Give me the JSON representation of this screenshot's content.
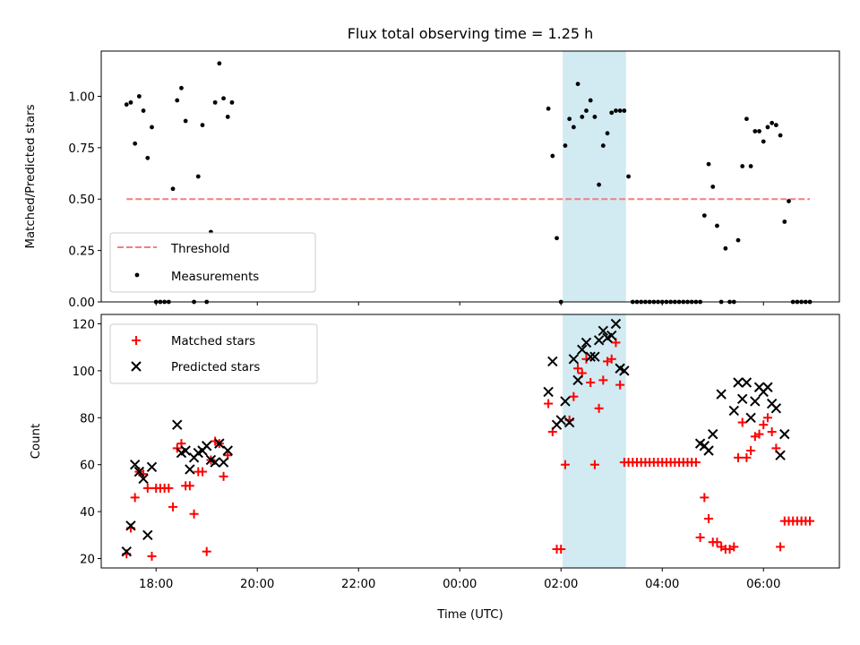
{
  "chart_data": [
    {
      "type": "scatter",
      "title": "Flux total observing time = 1.25 h",
      "ylabel": "Matched/Predicted stars",
      "xlabel": "",
      "ylim": [
        0,
        1.22
      ],
      "yticks": [
        "0.00",
        "0.25",
        "0.50",
        "0.75",
        "1.00"
      ],
      "highlight_span": [
        "02:02",
        "03:17"
      ],
      "highlight_color": "#add8e6",
      "threshold": {
        "name": "Threshold",
        "value": 0.5,
        "x_range": [
          "17:25",
          "06:55"
        ],
        "color": "#f08080"
      },
      "series": [
        {
          "name": "Measurements",
          "color": "#000000",
          "marker": "dot",
          "points": [
            [
              "17:25",
              0.96
            ],
            [
              "17:30",
              0.97
            ],
            [
              "17:35",
              0.77
            ],
            [
              "17:40",
              1.0
            ],
            [
              "17:45",
              0.93
            ],
            [
              "17:50",
              0.7
            ],
            [
              "17:55",
              0.85
            ],
            [
              "18:00",
              0.0
            ],
            [
              "18:05",
              0.0
            ],
            [
              "18:10",
              0.0
            ],
            [
              "18:15",
              0.0
            ],
            [
              "18:20",
              0.55
            ],
            [
              "18:25",
              0.98
            ],
            [
              "18:30",
              1.04
            ],
            [
              "18:35",
              0.88
            ],
            [
              "18:45",
              0.0
            ],
            [
              "18:50",
              0.61
            ],
            [
              "18:55",
              0.86
            ],
            [
              "19:00",
              0.0
            ],
            [
              "19:05",
              0.34
            ],
            [
              "19:10",
              0.97
            ],
            [
              "19:15",
              1.16
            ],
            [
              "19:20",
              0.99
            ],
            [
              "19:25",
              0.9
            ],
            [
              "19:30",
              0.97
            ],
            [
              "01:45",
              0.94
            ],
            [
              "01:50",
              0.71
            ],
            [
              "01:55",
              0.31
            ],
            [
              "02:00",
              0.0
            ],
            [
              "02:05",
              0.76
            ],
            [
              "02:10",
              0.89
            ],
            [
              "02:15",
              0.85
            ],
            [
              "02:20",
              1.06
            ],
            [
              "02:25",
              0.9
            ],
            [
              "02:30",
              0.93
            ],
            [
              "02:35",
              0.98
            ],
            [
              "02:40",
              0.9
            ],
            [
              "02:45",
              0.57
            ],
            [
              "02:50",
              0.76
            ],
            [
              "02:55",
              0.82
            ],
            [
              "03:00",
              0.92
            ],
            [
              "03:05",
              0.93
            ],
            [
              "03:10",
              0.93
            ],
            [
              "03:15",
              0.93
            ],
            [
              "03:20",
              0.61
            ],
            [
              "03:25",
              0.0
            ],
            [
              "03:30",
              0.0
            ],
            [
              "03:35",
              0.0
            ],
            [
              "03:40",
              0.0
            ],
            [
              "03:45",
              0.0
            ],
            [
              "03:50",
              0.0
            ],
            [
              "03:55",
              0.0
            ],
            [
              "04:00",
              0.0
            ],
            [
              "04:05",
              0.0
            ],
            [
              "04:10",
              0.0
            ],
            [
              "04:15",
              0.0
            ],
            [
              "04:20",
              0.0
            ],
            [
              "04:25",
              0.0
            ],
            [
              "04:30",
              0.0
            ],
            [
              "04:35",
              0.0
            ],
            [
              "04:40",
              0.0
            ],
            [
              "04:45",
              0.0
            ],
            [
              "04:50",
              0.42
            ],
            [
              "04:55",
              0.67
            ],
            [
              "05:00",
              0.56
            ],
            [
              "05:05",
              0.37
            ],
            [
              "05:10",
              0.0
            ],
            [
              "05:15",
              0.26
            ],
            [
              "05:20",
              0.0
            ],
            [
              "05:25",
              0.0
            ],
            [
              "05:30",
              0.3
            ],
            [
              "05:35",
              0.66
            ],
            [
              "05:40",
              0.89
            ],
            [
              "05:45",
              0.66
            ],
            [
              "05:50",
              0.83
            ],
            [
              "05:55",
              0.83
            ],
            [
              "06:00",
              0.78
            ],
            [
              "06:05",
              0.85
            ],
            [
              "06:10",
              0.87
            ],
            [
              "06:15",
              0.86
            ],
            [
              "06:20",
              0.81
            ],
            [
              "06:25",
              0.39
            ],
            [
              "06:30",
              0.49
            ],
            [
              "06:35",
              0.0
            ],
            [
              "06:40",
              0.0
            ],
            [
              "06:45",
              0.0
            ],
            [
              "06:50",
              0.0
            ],
            [
              "06:55",
              0.0
            ]
          ]
        }
      ]
    },
    {
      "type": "scatter",
      "title": "",
      "ylabel": "Count",
      "xlabel": "Time (UTC)",
      "ylim": [
        16,
        124
      ],
      "yticks": [
        "20",
        "40",
        "60",
        "80",
        "100",
        "120"
      ],
      "xlim": [
        "16:55",
        "07:30"
      ],
      "xticks": [
        "18:00",
        "20:00",
        "22:00",
        "00:00",
        "02:00",
        "04:00",
        "06:00"
      ],
      "highlight_span": [
        "02:02",
        "03:17"
      ],
      "highlight_color": "#add8e6",
      "series": [
        {
          "name": "Matched stars",
          "color": "#ff0000",
          "marker": "plus",
          "points": [
            [
              "17:25",
              22
            ],
            [
              "17:30",
              33
            ],
            [
              "17:35",
              46
            ],
            [
              "17:40",
              57
            ],
            [
              "17:45",
              56
            ],
            [
              "17:50",
              50
            ],
            [
              "17:55",
              21
            ],
            [
              "18:00",
              50
            ],
            [
              "18:05",
              50
            ],
            [
              "18:10",
              50
            ],
            [
              "18:15",
              50
            ],
            [
              "18:20",
              42
            ],
            [
              "18:25",
              67
            ],
            [
              "18:30",
              69
            ],
            [
              "18:35",
              51
            ],
            [
              "18:40",
              51
            ],
            [
              "18:45",
              39
            ],
            [
              "18:50",
              57
            ],
            [
              "18:55",
              57
            ],
            [
              "19:00",
              23
            ],
            [
              "19:05",
              62
            ],
            [
              "19:10",
              70
            ],
            [
              "19:15",
              69
            ],
            [
              "19:20",
              55
            ],
            [
              "19:25",
              64
            ],
            [
              "01:45",
              86
            ],
            [
              "01:50",
              74
            ],
            [
              "01:55",
              24
            ],
            [
              "02:00",
              24
            ],
            [
              "02:05",
              60
            ],
            [
              "02:10",
              79
            ],
            [
              "02:15",
              89
            ],
            [
              "02:20",
              101
            ],
            [
              "02:25",
              99
            ],
            [
              "02:30",
              105
            ],
            [
              "02:35",
              95
            ],
            [
              "02:40",
              60
            ],
            [
              "02:45",
              84
            ],
            [
              "02:50",
              96
            ],
            [
              "02:55",
              104
            ],
            [
              "03:00",
              105
            ],
            [
              "03:05",
              112
            ],
            [
              "03:10",
              94
            ],
            [
              "03:15",
              61
            ],
            [
              "03:20",
              61
            ],
            [
              "03:25",
              61
            ],
            [
              "03:30",
              61
            ],
            [
              "03:35",
              61
            ],
            [
              "03:40",
              61
            ],
            [
              "03:45",
              61
            ],
            [
              "03:50",
              61
            ],
            [
              "03:55",
              61
            ],
            [
              "04:00",
              61
            ],
            [
              "04:05",
              61
            ],
            [
              "04:10",
              61
            ],
            [
              "04:15",
              61
            ],
            [
              "04:20",
              61
            ],
            [
              "04:25",
              61
            ],
            [
              "04:30",
              61
            ],
            [
              "04:35",
              61
            ],
            [
              "04:40",
              61
            ],
            [
              "04:45",
              29
            ],
            [
              "04:50",
              46
            ],
            [
              "04:55",
              37
            ],
            [
              "05:00",
              27
            ],
            [
              "05:05",
              27
            ],
            [
              "05:10",
              25
            ],
            [
              "05:15",
              24
            ],
            [
              "05:20",
              24
            ],
            [
              "05:25",
              25
            ],
            [
              "05:30",
              63
            ],
            [
              "05:35",
              78
            ],
            [
              "05:40",
              63
            ],
            [
              "05:45",
              66
            ],
            [
              "05:50",
              72
            ],
            [
              "05:55",
              73
            ],
            [
              "06:00",
              77
            ],
            [
              "06:05",
              80
            ],
            [
              "06:10",
              74
            ],
            [
              "06:15",
              67
            ],
            [
              "06:20",
              25
            ],
            [
              "06:25",
              36
            ],
            [
              "06:30",
              36
            ],
            [
              "06:35",
              36
            ],
            [
              "06:40",
              36
            ],
            [
              "06:45",
              36
            ],
            [
              "06:50",
              36
            ],
            [
              "06:55",
              36
            ]
          ]
        },
        {
          "name": "Predicted stars",
          "color": "#000000",
          "marker": "x",
          "points": [
            [
              "17:25",
              23
            ],
            [
              "17:30",
              34
            ],
            [
              "17:35",
              60
            ],
            [
              "17:40",
              57
            ],
            [
              "17:45",
              54
            ],
            [
              "17:50",
              30
            ],
            [
              "17:55",
              59
            ],
            [
              "18:25",
              77
            ],
            [
              "18:30",
              65
            ],
            [
              "18:35",
              66
            ],
            [
              "18:40",
              58
            ],
            [
              "18:45",
              63
            ],
            [
              "18:50",
              65
            ],
            [
              "18:55",
              66
            ],
            [
              "19:00",
              68
            ],
            [
              "19:05",
              62
            ],
            [
              "19:10",
              61
            ],
            [
              "19:15",
              69
            ],
            [
              "19:20",
              61
            ],
            [
              "19:25",
              66
            ],
            [
              "01:45",
              91
            ],
            [
              "01:50",
              104
            ],
            [
              "01:55",
              77
            ],
            [
              "02:00",
              79
            ],
            [
              "02:05",
              87
            ],
            [
              "02:10",
              78
            ],
            [
              "02:15",
              105
            ],
            [
              "02:20",
              96
            ],
            [
              "02:25",
              109
            ],
            [
              "02:30",
              112
            ],
            [
              "02:35",
              106
            ],
            [
              "02:40",
              106
            ],
            [
              "02:45",
              113
            ],
            [
              "02:50",
              117
            ],
            [
              "02:55",
              114
            ],
            [
              "03:00",
              115
            ],
            [
              "03:05",
              120
            ],
            [
              "03:10",
              101
            ],
            [
              "03:15",
              100
            ],
            [
              "04:45",
              69
            ],
            [
              "04:50",
              68
            ],
            [
              "04:55",
              66
            ],
            [
              "05:00",
              73
            ],
            [
              "05:10",
              90
            ],
            [
              "05:25",
              83
            ],
            [
              "05:30",
              95
            ],
            [
              "05:35",
              88
            ],
            [
              "05:40",
              95
            ],
            [
              "05:45",
              80
            ],
            [
              "05:50",
              87
            ],
            [
              "05:55",
              93
            ],
            [
              "06:00",
              91
            ],
            [
              "06:05",
              93
            ],
            [
              "06:10",
              86
            ],
            [
              "06:15",
              84
            ],
            [
              "06:20",
              64
            ],
            [
              "06:25",
              73
            ]
          ]
        }
      ]
    }
  ]
}
